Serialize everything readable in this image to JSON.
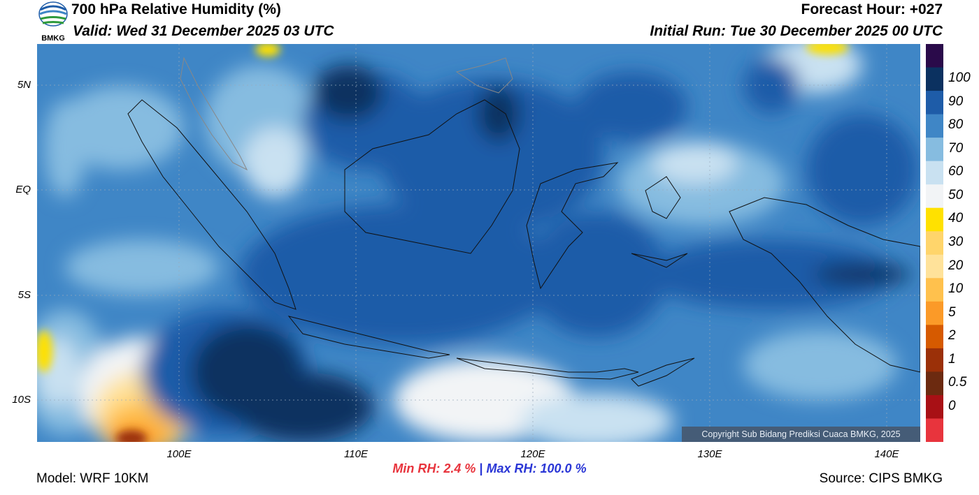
{
  "header": {
    "title": "700 hPa Relative Humidity (%)",
    "valid": "Valid: Wed 31 December 2025 03 UTC",
    "forecast_hour": "Forecast Hour: +027",
    "initial_run": "Initial Run: Tue 30 December 2025 00 UTC",
    "logo_text": "BMKG"
  },
  "axes": {
    "lat_labels": [
      "5N",
      "EQ",
      "5S",
      "10S"
    ],
    "lon_labels": [
      "100E",
      "110E",
      "120E",
      "130E",
      "140E"
    ]
  },
  "colorbar": {
    "labels": [
      "100",
      "90",
      "80",
      "70",
      "60",
      "50",
      "40",
      "30",
      "20",
      "10",
      "5",
      "2",
      "1",
      "0.5",
      "0"
    ],
    "colors": [
      "#2a0a4a",
      "#0b3160",
      "#1e5ca8",
      "#3f86c6",
      "#86bce0",
      "#c9e1f1",
      "#f2f4f6",
      "#ffe100",
      "#ffd56b",
      "#ffe29a",
      "#ffc14d",
      "#fb9a28",
      "#d65a00",
      "#9b3008",
      "#6c2a10",
      "#a81015",
      "#e8343d"
    ]
  },
  "stats": {
    "min_label": "Min RH:",
    "min_value": "2.4 %",
    "separator": "|",
    "max_label": "Max RH: 100.0 %"
  },
  "footer": {
    "model": "Model: WRF 10KM",
    "source": "Source: CIPS BMKG",
    "copyright": "Copyright Sub Bidang Prediksi Cuaca BMKG, 2025"
  }
}
